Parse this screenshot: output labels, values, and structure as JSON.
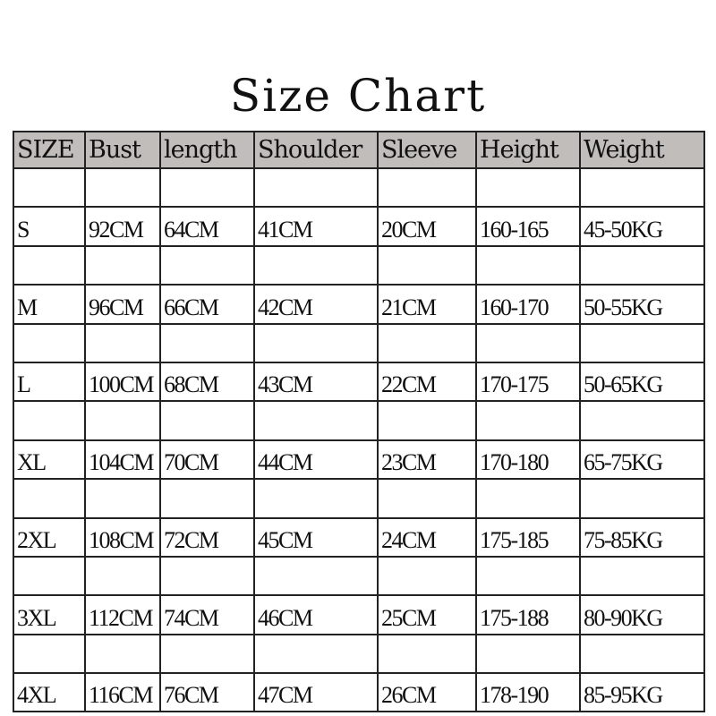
{
  "title": "Size Chart",
  "table": {
    "headers": [
      "SIZE",
      "Bust",
      "length",
      "Shoulder",
      "Sleeve",
      "Height",
      "Weight"
    ],
    "rows": [
      [
        "S",
        "92CM",
        "64CM",
        "41CM",
        "20CM",
        "160-165",
        "45-50KG"
      ],
      [
        "M",
        "96CM",
        "66CM",
        "42CM",
        "21CM",
        "160-170",
        "50-55KG"
      ],
      [
        "L",
        "100CM",
        "68CM",
        "43CM",
        "22CM",
        "170-175",
        "50-65KG"
      ],
      [
        "XL",
        "104CM",
        "70CM",
        "44CM",
        "23CM",
        "170-180",
        "65-75KG"
      ],
      [
        "2XL",
        "108CM",
        "72CM",
        "45CM",
        "24CM",
        "175-185",
        "75-85KG"
      ],
      [
        "3XL",
        "112CM",
        "74CM",
        "46CM",
        "25CM",
        "175-188",
        "80-90KG"
      ],
      [
        "4XL",
        "116CM",
        "76CM",
        "47CM",
        "26CM",
        "178-190",
        "85-95KG"
      ]
    ],
    "header_color": "#c0bdbb"
  }
}
